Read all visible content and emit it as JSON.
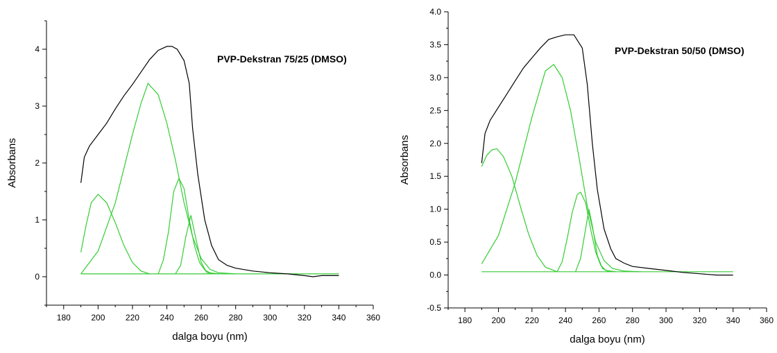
{
  "colors": {
    "sum": "#000000",
    "component": "#33cc33"
  },
  "chart_data": [
    {
      "type": "line",
      "title": "PVP-Dekstran 75/25 (DMSO)",
      "xlabel": "dalga boyu (nm)",
      "ylabel": "Absorbans",
      "xlim": [
        170,
        360
      ],
      "ylim": [
        -0.5,
        4.5
      ],
      "xticks": [
        180,
        200,
        220,
        240,
        260,
        280,
        300,
        320,
        340,
        360
      ],
      "yticks": [
        0,
        1,
        2,
        3,
        4
      ],
      "grid": false,
      "series": [
        {
          "role": "sum",
          "x": [
            190,
            192,
            195,
            200,
            205,
            210,
            215,
            220,
            225,
            230,
            235,
            240,
            243,
            246,
            250,
            253,
            255,
            258,
            262,
            266,
            270,
            275,
            280,
            290,
            300,
            310,
            320,
            325,
            330,
            340
          ],
          "y": [
            1.65,
            2.1,
            2.3,
            2.5,
            2.7,
            2.95,
            3.18,
            3.38,
            3.6,
            3.82,
            3.98,
            4.05,
            4.05,
            4.0,
            3.8,
            3.4,
            2.6,
            1.8,
            1.0,
            0.55,
            0.3,
            0.2,
            0.15,
            0.1,
            0.07,
            0.05,
            0.02,
            0.0,
            0.02,
            0.02
          ]
        },
        {
          "role": "component",
          "x": [
            190,
            193,
            196,
            200,
            205,
            210,
            215,
            220,
            225,
            230
          ],
          "y": [
            0.43,
            0.9,
            1.3,
            1.45,
            1.3,
            0.95,
            0.55,
            0.25,
            0.1,
            0.05
          ]
        },
        {
          "role": "component",
          "x": [
            190,
            200,
            210,
            220,
            225,
            229,
            235,
            240,
            245,
            250,
            255,
            260,
            265,
            270,
            280
          ],
          "y": [
            0.05,
            0.45,
            1.3,
            2.5,
            3.05,
            3.4,
            3.2,
            2.7,
            2.05,
            1.3,
            0.7,
            0.32,
            0.13,
            0.07,
            0.05
          ]
        },
        {
          "role": "component",
          "x": [
            235,
            238,
            241,
            244,
            247,
            250,
            253,
            256,
            259,
            262,
            265,
            270
          ],
          "y": [
            0.05,
            0.3,
            0.8,
            1.5,
            1.73,
            1.55,
            1.0,
            0.55,
            0.25,
            0.12,
            0.07,
            0.05
          ]
        },
        {
          "role": "component",
          "x": [
            245,
            248,
            251,
            254,
            257,
            260,
            263,
            266
          ],
          "y": [
            0.05,
            0.2,
            0.7,
            1.08,
            0.65,
            0.25,
            0.08,
            0.05
          ]
        },
        {
          "role": "component",
          "x": [
            190,
            340
          ],
          "y": [
            0.05,
            0.05
          ]
        }
      ]
    },
    {
      "type": "line",
      "title": "PVP-Dekstran 50/50 (DMSO)",
      "xlabel": "dalga boyu (nm)",
      "ylabel": "Absorbans",
      "xlim": [
        170,
        360
      ],
      "ylim": [
        -0.5,
        4.0
      ],
      "xticks": [
        180,
        200,
        220,
        240,
        260,
        280,
        300,
        320,
        340,
        360
      ],
      "yticks": [
        -0.5,
        0.0,
        0.5,
        1.0,
        1.5,
        2.0,
        2.5,
        3.0,
        3.5,
        4.0
      ],
      "ytick_labels": [
        "-0.5",
        "0.0",
        "0.5",
        "1.0",
        "1.5",
        "2.0",
        "2.5",
        "3.0",
        "3.5",
        "4.0"
      ],
      "grid": false,
      "series": [
        {
          "role": "sum",
          "x": [
            190,
            192,
            195,
            200,
            205,
            210,
            215,
            220,
            225,
            230,
            235,
            240,
            245,
            250,
            253,
            256,
            259,
            263,
            267,
            270,
            275,
            280,
            290,
            300,
            310,
            320,
            330,
            340
          ],
          "y": [
            1.7,
            2.15,
            2.35,
            2.55,
            2.75,
            2.95,
            3.15,
            3.3,
            3.45,
            3.58,
            3.62,
            3.65,
            3.65,
            3.45,
            2.9,
            2.0,
            1.3,
            0.7,
            0.4,
            0.25,
            0.18,
            0.13,
            0.1,
            0.07,
            0.04,
            0.02,
            0.0,
            0.0
          ]
        },
        {
          "role": "component",
          "x": [
            190,
            193,
            196,
            199,
            203,
            208,
            213,
            218,
            223,
            228,
            235
          ],
          "y": [
            1.65,
            1.82,
            1.9,
            1.92,
            1.8,
            1.5,
            1.05,
            0.62,
            0.3,
            0.12,
            0.05
          ]
        },
        {
          "role": "component",
          "x": [
            190,
            200,
            210,
            220,
            228,
            233,
            238,
            243,
            248,
            253,
            258,
            263,
            268,
            275,
            285
          ],
          "y": [
            0.17,
            0.6,
            1.4,
            2.4,
            3.1,
            3.2,
            3.0,
            2.5,
            1.8,
            1.05,
            0.5,
            0.22,
            0.1,
            0.06,
            0.05
          ]
        },
        {
          "role": "component",
          "x": [
            235,
            238,
            241,
            244,
            247,
            249,
            252,
            255,
            258,
            261,
            264,
            270
          ],
          "y": [
            0.05,
            0.2,
            0.55,
            0.95,
            1.22,
            1.26,
            1.1,
            0.7,
            0.35,
            0.15,
            0.07,
            0.05
          ]
        },
        {
          "role": "component",
          "x": [
            246,
            249,
            252,
            254,
            256,
            259,
            262,
            266
          ],
          "y": [
            0.05,
            0.25,
            0.7,
            1.0,
            0.75,
            0.3,
            0.1,
            0.05
          ]
        },
        {
          "role": "component",
          "x": [
            190,
            340
          ],
          "y": [
            0.05,
            0.05
          ]
        }
      ]
    }
  ]
}
